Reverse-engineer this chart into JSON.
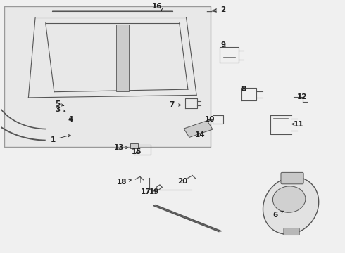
{
  "bg_color": "#f0f0f0",
  "gray": "#555555",
  "dark": "#222222",
  "fs_label": 7.5,
  "lw": 0.8
}
